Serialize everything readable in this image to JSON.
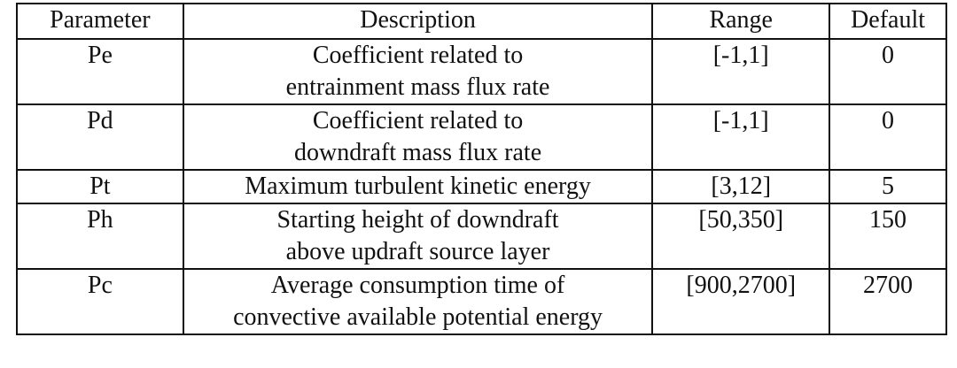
{
  "table": {
    "headers": {
      "parameter": "Parameter",
      "description": "Description",
      "range": "Range",
      "default": "Default"
    },
    "rows": [
      {
        "parameter": "Pe",
        "description_lines": [
          "Coefficient related to",
          "entrainment mass flux rate"
        ],
        "range": "[-1,1]",
        "default": "0"
      },
      {
        "parameter": "Pd",
        "description_lines": [
          "Coefficient related to",
          "downdraft mass flux rate"
        ],
        "range": "[-1,1]",
        "default": "0"
      },
      {
        "parameter": "Pt",
        "description_lines": [
          "Maximum turbulent kinetic energy"
        ],
        "range": "[3,12]",
        "default": "5"
      },
      {
        "parameter": "Ph",
        "description_lines": [
          "Starting height of downdraft",
          "above updraft source layer"
        ],
        "range": "[50,350]",
        "default": "150"
      },
      {
        "parameter": "Pc",
        "description_lines": [
          "Average consumption time of",
          "convective available potential energy"
        ],
        "range": "[900,2700]",
        "default": "2700"
      }
    ]
  }
}
